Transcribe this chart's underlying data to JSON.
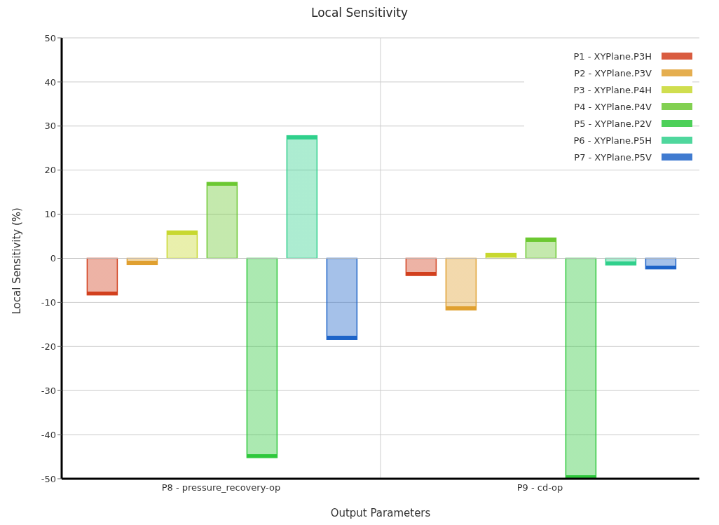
{
  "chart_data": {
    "type": "bar",
    "title": "Local Sensitivity",
    "xlabel": "Output Parameters",
    "ylabel": "Local Sensitivity (%)",
    "categories": [
      "P8 - pressure_recovery-op",
      "P9 - cd-op"
    ],
    "series": [
      {
        "name": "P1 - XYPlane.P3H",
        "color": "#d2401e",
        "values": [
          -8.3,
          -3.9
        ]
      },
      {
        "name": "P2 - XYPlane.P3V",
        "color": "#e0a030",
        "values": [
          -1.4,
          -11.7
        ]
      },
      {
        "name": "P3 - XYPlane.P4H",
        "color": "#c8d830",
        "values": [
          6.2,
          1.1
        ]
      },
      {
        "name": "P4 - XYPlane.P4V",
        "color": "#6cc832",
        "values": [
          17.2,
          4.6
        ]
      },
      {
        "name": "P5 - XYPlane.P2V",
        "color": "#2ec83c",
        "values": [
          -45.2,
          -50
        ]
      },
      {
        "name": "P6 - XYPlane.P5H",
        "color": "#30d08c",
        "values": [
          27.8,
          -1.5
        ]
      },
      {
        "name": "P7 - XYPlane.P5V",
        "color": "#1e64c8",
        "values": [
          -18.4,
          -2.4
        ]
      }
    ],
    "ylim": [
      -50,
      50
    ],
    "yticks": [
      -50,
      -40,
      -30,
      -20,
      -10,
      0,
      10,
      20,
      30,
      40,
      50
    ],
    "grid": true,
    "legend": "top right"
  }
}
